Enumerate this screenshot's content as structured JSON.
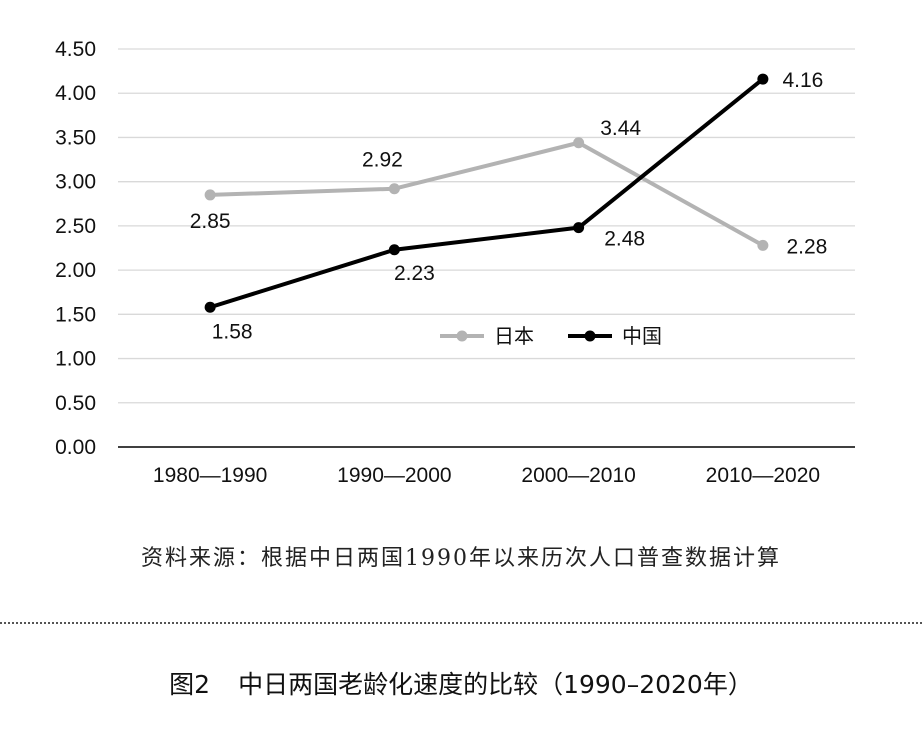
{
  "chart_data": {
    "type": "line",
    "categories": [
      "1980—1990",
      "1990—2000",
      "2000—2010",
      "2010—2020"
    ],
    "series": [
      {
        "name": "日本",
        "values": [
          2.85,
          2.92,
          3.44,
          2.28
        ],
        "color": "#b3b3b3"
      },
      {
        "name": "中国",
        "values": [
          1.58,
          2.23,
          2.48,
          4.16
        ],
        "color": "#000000"
      }
    ],
    "yticks": [
      "0.00",
      "0.50",
      "1.00",
      "1.50",
      "2.00",
      "2.50",
      "3.00",
      "3.50",
      "4.00",
      "4.50"
    ],
    "ylim": [
      0,
      4.5
    ],
    "grid": true,
    "legend_position": "center-right",
    "title": "",
    "xlabel": "",
    "ylabel": ""
  },
  "source_note": "资料来源：根据中日两国1990年以来历次人口普查数据计算",
  "caption": {
    "figure_number": "图2",
    "text": "中日两国老龄化速度的比较（1990–2020年）"
  }
}
